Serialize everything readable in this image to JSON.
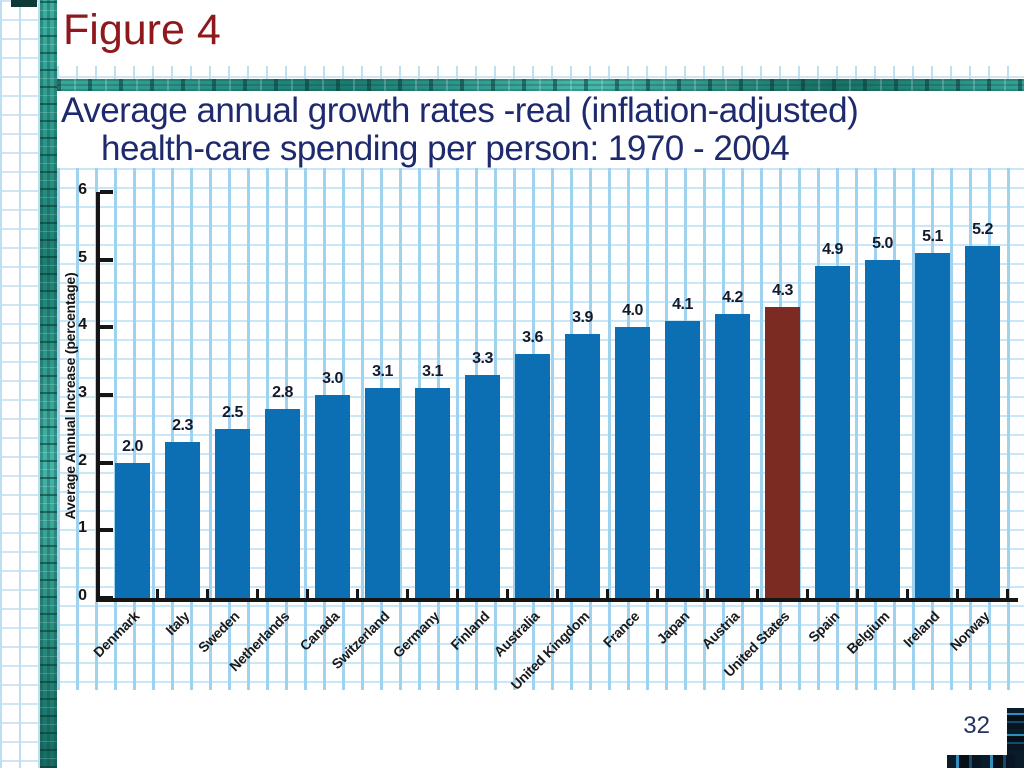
{
  "slide": {
    "title": "Figure 4",
    "subtitle_line1": "Average annual growth rates -real (inflation-adjusted)",
    "subtitle_line2": "health-care spending per person: 1970 - 2004",
    "page_number": "32"
  },
  "colors": {
    "title_red": "#8e181c",
    "subtitle_navy": "#1e2a6d",
    "bar_blue": "#0c6fb4",
    "highlight_maroon": "#7b2b22",
    "teal_border": "#2a9a8e"
  },
  "chart_data": {
    "type": "bar",
    "title": "",
    "categories": [
      "Denmark",
      "Italy",
      "Sweden",
      "Netherlands",
      "Canada",
      "Switzerland",
      "Germany",
      "Finland",
      "Australia",
      "United Kingdom",
      "France",
      "Japan",
      "Austria",
      "United States",
      "Spain",
      "Belgium",
      "Ireland",
      "Norway"
    ],
    "values": [
      2.0,
      2.3,
      2.5,
      2.8,
      3.0,
      3.1,
      3.1,
      3.3,
      3.6,
      3.9,
      4.0,
      4.1,
      4.2,
      4.3,
      4.9,
      5.0,
      5.1,
      5.2
    ],
    "value_label_format": "one_decimal",
    "highlight_category": "United States",
    "bar_color": "#0c6fb4",
    "highlight_color": "#7b2b22",
    "xlabel": "",
    "ylabel": "Average Annual Increase (percentage)",
    "ylim": [
      0,
      6
    ],
    "yticks": [
      0,
      1,
      2,
      3,
      4,
      5,
      6
    ],
    "grid": "light-blue graph paper background",
    "legend_position": "none"
  }
}
